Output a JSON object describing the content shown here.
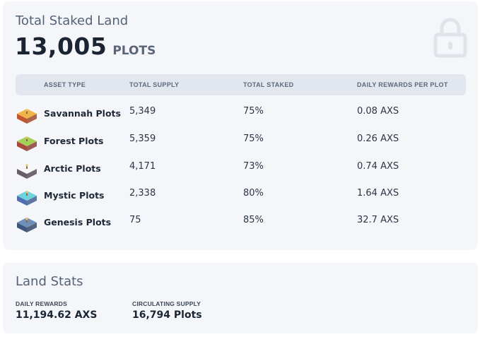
{
  "staked": {
    "title": "Total Staked Land",
    "total_value": "13,005",
    "total_unit": "PLOTS",
    "lock_icon": "lock-icon"
  },
  "table": {
    "headers": {
      "asset_type": "ASSET TYPE",
      "total_supply": "TOTAL SUPPLY",
      "total_staked": "TOTAL STAKED",
      "daily_rewards": "DAILY REWARDS PER PLOT"
    },
    "rows": [
      {
        "name": "Savannah Plots",
        "supply": "5,349",
        "staked": "75%",
        "rewards": "0.08 AXS",
        "icon": "savannah-plot-icon",
        "top_color": "#f0b54a",
        "side_color": "#c0572e"
      },
      {
        "name": "Forest Plots",
        "supply": "5,359",
        "staked": "75%",
        "rewards": "0.26 AXS",
        "icon": "forest-plot-icon",
        "top_color": "#a6cf57",
        "side_color": "#a8493a"
      },
      {
        "name": "Arctic Plots",
        "supply": "4,171",
        "staked": "73%",
        "rewards": "0.74 AXS",
        "icon": "arctic-plot-icon",
        "top_color": "#f7f7f7",
        "side_color": "#6b5c6a"
      },
      {
        "name": "Mystic Plots",
        "supply": "2,338",
        "staked": "80%",
        "rewards": "1.64 AXS",
        "icon": "mystic-plot-icon",
        "top_color": "#6fd3dc",
        "side_color": "#4f6fb0"
      },
      {
        "name": "Genesis Plots",
        "supply": "75",
        "staked": "85%",
        "rewards": "32.7 AXS",
        "icon": "genesis-plot-icon",
        "top_color": "#6f8fb8",
        "side_color": "#3e557e"
      }
    ]
  },
  "stats": {
    "title": "Land Stats",
    "daily_rewards_label": "DAILY REWARDS",
    "daily_rewards_value": "11,194.62 AXS",
    "circulating_label": "CIRCULATING SUPPLY",
    "circulating_value": "16,794 Plots"
  }
}
